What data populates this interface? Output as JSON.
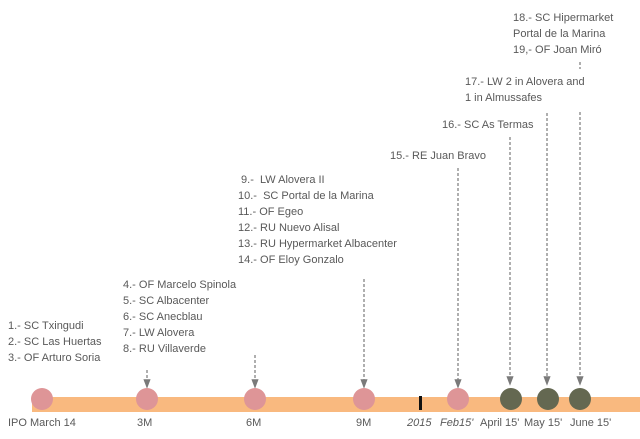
{
  "colors": {
    "bar": "#f9b97f",
    "past_dot": "#de9597",
    "future_dot": "#646851",
    "arrow": "#7a7a7a",
    "text": "#595959",
    "marker": "#111111"
  },
  "groups": [
    {
      "items": [
        "1.- SC Txingudi",
        "2.- SC Las Huertas",
        "3.- OF Arturo Soria"
      ]
    },
    {
      "items": [
        "4.- OF Marcelo Spinola",
        "5.- SC Albacenter",
        "6.- SC Anecblau",
        "7.- LW Alovera",
        "8.- RU Villaverde"
      ]
    },
    {
      "items": [
        " 9.-  LW Alovera II",
        "10.-  SC Portal de la Marina",
        "11.- OF Egeo",
        "12.- RU Nuevo Alisal",
        "13.- RU Hypermarket Albacenter",
        "14.- OF Eloy Gonzalo"
      ]
    },
    {
      "items": [
        "15.- RE Juan Bravo"
      ]
    },
    {
      "items": [
        "16.- SC As Termas"
      ]
    },
    {
      "items": [
        "17.- LW 2 in Alovera and",
        "1 in Almussafes"
      ]
    },
    {
      "items": [
        "18.- SC Hipermarket",
        "Portal de la Marina",
        "19,- OF Joan Miró"
      ]
    }
  ],
  "timeline": {
    "labels": [
      "IPO March 14",
      "3M",
      "6M",
      "9M",
      "2015",
      "Feb15'",
      "April 15'",
      "May 15'",
      "June 15'"
    ],
    "milestones": [
      {
        "label": "IPO March 14",
        "status": "past"
      },
      {
        "label": "3M",
        "status": "past"
      },
      {
        "label": "6M",
        "status": "past"
      },
      {
        "label": "9M",
        "status": "past"
      },
      {
        "label": "Feb15'",
        "status": "past"
      },
      {
        "label": "April 15'",
        "status": "future"
      },
      {
        "label": "May 15'",
        "status": "future"
      },
      {
        "label": "June 15'",
        "status": "future"
      }
    ]
  }
}
